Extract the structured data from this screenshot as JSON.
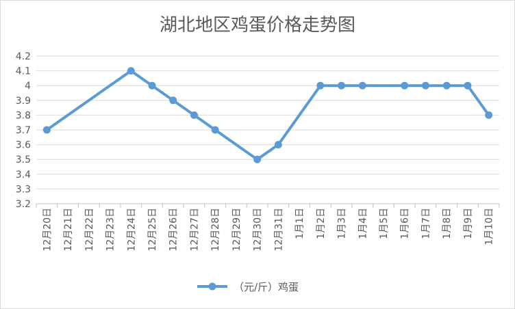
{
  "chart_data": {
    "type": "line",
    "title": "湖北地区鸡蛋价格走势图",
    "xlabel": "",
    "ylabel": "",
    "ylim": [
      3.2,
      4.2
    ],
    "yticks": [
      "4.2",
      "4.1",
      "4",
      "3.9",
      "3.8",
      "3.7",
      "3.6",
      "3.5",
      "3.4",
      "3.3",
      "3.2"
    ],
    "grid": true,
    "legend_position": "bottom",
    "categories": [
      "12月20日",
      "12月21日",
      "12月22日",
      "12月23日",
      "12月24日",
      "12月25日",
      "12月26日",
      "12月27日",
      "12月28日",
      "12月29日",
      "12月30日",
      "12月31日",
      "1月1日",
      "1月2日",
      "1月3日",
      "1月4日",
      "1月5日",
      "1月6日",
      "1月7日",
      "1月8日",
      "1月9日",
      "1月10日"
    ],
    "series": [
      {
        "name": "（元/斤）鸡蛋",
        "color": "#5b9bd5",
        "values": [
          3.7,
          null,
          null,
          null,
          4.1,
          4.0,
          3.9,
          3.8,
          3.7,
          null,
          3.5,
          3.6,
          null,
          4.0,
          4.0,
          4.0,
          null,
          4.0,
          4.0,
          4.0,
          4.0,
          3.8
        ]
      }
    ]
  }
}
